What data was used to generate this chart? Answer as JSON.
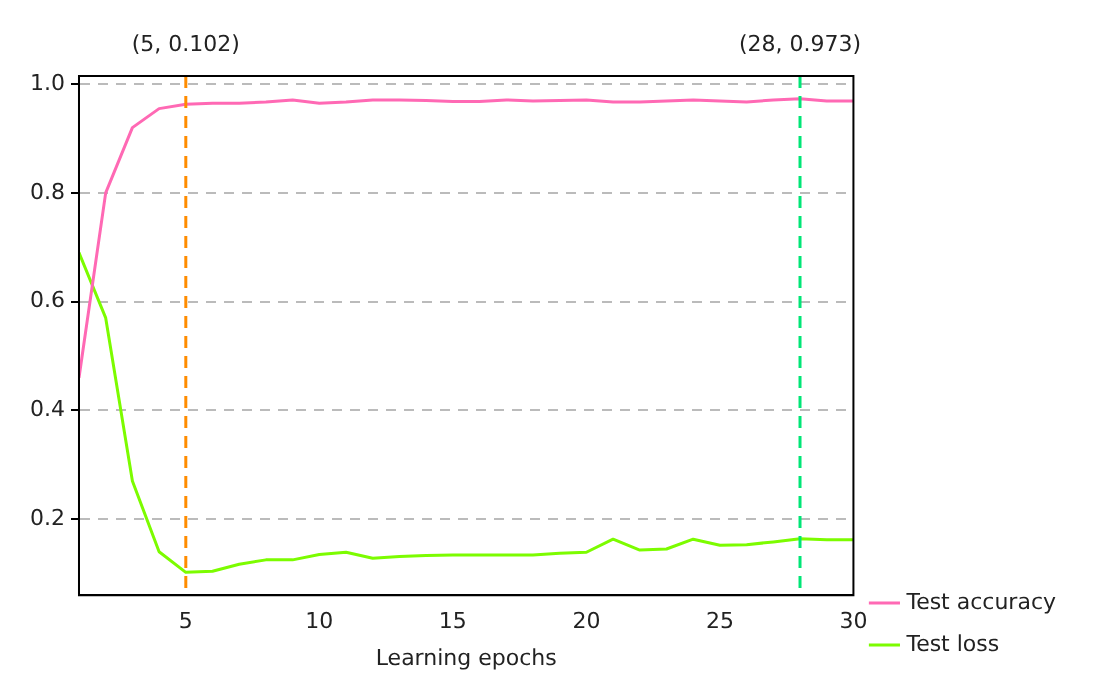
{
  "chart_data": {
    "type": "line",
    "xlabel": "Learning epochs",
    "x": [
      1,
      2,
      3,
      4,
      5,
      6,
      7,
      8,
      9,
      10,
      11,
      12,
      13,
      14,
      15,
      16,
      17,
      18,
      19,
      20,
      21,
      22,
      23,
      24,
      25,
      26,
      27,
      28,
      29,
      30
    ],
    "series": [
      {
        "name": "Test accuracy",
        "color": "#ff69b4",
        "values": [
          0.46,
          0.8,
          0.92,
          0.955,
          0.963,
          0.965,
          0.965,
          0.967,
          0.971,
          0.965,
          0.967,
          0.971,
          0.971,
          0.97,
          0.968,
          0.968,
          0.971,
          0.969,
          0.97,
          0.971,
          0.967,
          0.967,
          0.969,
          0.971,
          0.969,
          0.967,
          0.971,
          0.973,
          0.969,
          0.969
        ]
      },
      {
        "name": "Test loss",
        "color": "#7cfc00",
        "values": [
          0.69,
          0.57,
          0.27,
          0.14,
          0.102,
          0.104,
          0.117,
          0.125,
          0.125,
          0.135,
          0.139,
          0.128,
          0.131,
          0.133,
          0.134,
          0.134,
          0.134,
          0.134,
          0.137,
          0.139,
          0.163,
          0.143,
          0.145,
          0.163,
          0.152,
          0.153,
          0.158,
          0.164,
          0.162,
          0.162
        ]
      }
    ],
    "xlim": [
      1,
      30
    ],
    "xticks": [
      5,
      10,
      15,
      20,
      25,
      30
    ],
    "ylim": [
      0.06,
      1.015
    ],
    "yticks": [
      0.2,
      0.4,
      0.6,
      0.8,
      {
        "value": 1,
        "label": "1.0"
      }
    ],
    "ref_lines": [
      {
        "axis": "x",
        "value": 5,
        "label": "(5, 0.102)",
        "color": "#ff8c00",
        "line_style": "dashed"
      },
      {
        "axis": "x",
        "value": 28,
        "label": "(28, 0.973)",
        "color": "#00e676",
        "line_style": "dashed"
      }
    ],
    "grid": "y",
    "legend": "bottom right"
  }
}
